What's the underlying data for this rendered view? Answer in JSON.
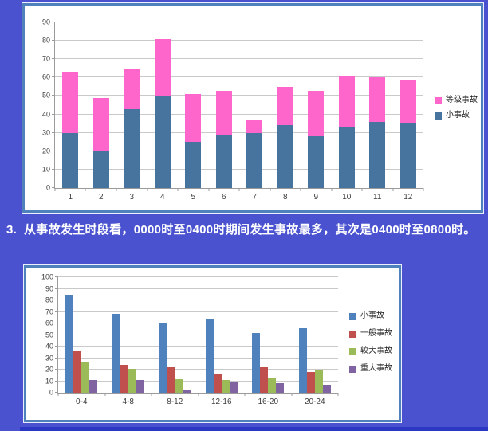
{
  "page": {
    "background_color": "#4a52cf",
    "bottom_rule_color": "#2c38c4"
  },
  "colors": {
    "panel_border": "#4f81bd",
    "panel_background": "#ffffff",
    "gridline": "#c9c9c9",
    "axis": "#9b9b9b",
    "axis_label": "#3d3d3d"
  },
  "paragraph": {
    "number": "3.",
    "text": "从事故发生时段看，0000时至0400时期间发生事故最多，其次是0400时至0800时。"
  },
  "chart_data": [
    {
      "type": "bar",
      "variant": "stacked",
      "title": "",
      "xlabel": "",
      "ylabel": "",
      "categories": [
        "1",
        "2",
        "3",
        "4",
        "5",
        "6",
        "7",
        "8",
        "9",
        "10",
        "11",
        "12"
      ],
      "series": [
        {
          "key": "minor-accident",
          "name": "小事故",
          "color": "#46749f",
          "values": [
            30,
            20,
            43,
            50,
            25,
            29,
            30,
            34,
            28,
            33,
            36,
            35
          ]
        },
        {
          "key": "graded-accident",
          "name": "等级事故",
          "color": "#ff66cc",
          "values": [
            33,
            29,
            22,
            31,
            26,
            24,
            7,
            21,
            25,
            28,
            24,
            24
          ]
        }
      ],
      "legend_order": [
        1,
        0
      ],
      "legend_position": "right",
      "ylim": [
        0,
        90
      ],
      "ytick": 10,
      "grid": true
    },
    {
      "type": "bar",
      "variant": "grouped",
      "title": "",
      "xlabel": "",
      "ylabel": "",
      "categories": [
        "0-4",
        "4-8",
        "8-12",
        "12-16",
        "16-20",
        "20-24"
      ],
      "series": [
        {
          "key": "minor-accident",
          "name": "小事故",
          "color": "#4f81bd",
          "values": [
            85,
            68,
            60,
            64,
            52,
            56
          ]
        },
        {
          "key": "ordinary-accident",
          "name": "一般事故",
          "color": "#c0504d",
          "values": [
            36,
            24,
            22,
            16,
            22,
            18
          ]
        },
        {
          "key": "larger-accident",
          "name": "较大事故",
          "color": "#9bbb59",
          "values": [
            27,
            21,
            12,
            11,
            13,
            19
          ]
        },
        {
          "key": "major-accident",
          "name": "重大事故",
          "color": "#8064a2",
          "values": [
            11,
            11,
            3,
            9,
            8,
            7
          ]
        }
      ],
      "legend_order": [
        0,
        1,
        2,
        3
      ],
      "legend_position": "right",
      "ylim": [
        0,
        100
      ],
      "ytick": 10,
      "grid": true
    }
  ]
}
